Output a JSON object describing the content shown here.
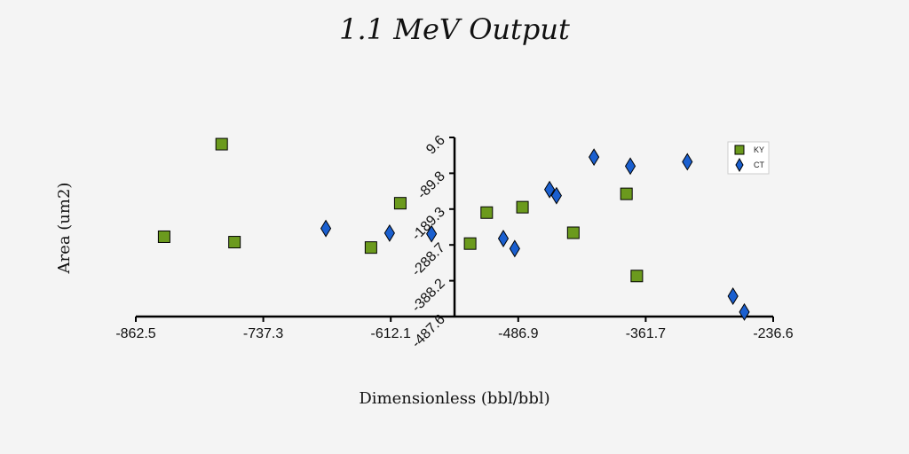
{
  "chart_data": {
    "type": "scatter",
    "title": "1.1 MeV Output",
    "xlabel": "Dimensionless (bbl/bbl)",
    "ylabel": "Area (um2)",
    "xlim": [
      -862.5,
      -236.6
    ],
    "ylim": [
      -487.6,
      9.6
    ],
    "xticks": [
      "-862.5",
      "-737.3",
      "-612.1",
      "-486.9",
      "-361.7",
      "-236.6"
    ],
    "yticks": [
      "-487.6",
      "-388.2",
      "-288.7",
      "-189.3",
      "-89.8",
      "9.6"
    ],
    "y_axis_at_x": -549.5,
    "grid": false,
    "legend_position": "top-right",
    "series": [
      {
        "name": "KY",
        "marker": "square",
        "color": "#6b9a1d",
        "points": [
          {
            "x": -778.2,
            "y": -9.0
          },
          {
            "x": -834.7,
            "y": -266.0
          },
          {
            "x": -765.6,
            "y": -281.0
          },
          {
            "x": -602.8,
            "y": -173.0
          },
          {
            "x": -631.6,
            "y": -296.0
          },
          {
            "x": -534.2,
            "y": -285.0
          },
          {
            "x": -517.9,
            "y": -199.0
          },
          {
            "x": -482.8,
            "y": -184.0
          },
          {
            "x": -432.9,
            "y": -255.0
          },
          {
            "x": -380.7,
            "y": -147.0
          },
          {
            "x": -370.5,
            "y": -375.0
          }
        ]
      },
      {
        "name": "CT",
        "marker": "diamond",
        "color": "#1a5fcf",
        "points": [
          {
            "x": -675.9,
            "y": -243.0
          },
          {
            "x": -613.3,
            "y": -256.0
          },
          {
            "x": -572.1,
            "y": -258.0
          },
          {
            "x": -501.6,
            "y": -271.0
          },
          {
            "x": -490.4,
            "y": -299.0
          },
          {
            "x": -456.2,
            "y": -135.0
          },
          {
            "x": -449.4,
            "y": -152.0
          },
          {
            "x": -412.6,
            "y": -45.0
          },
          {
            "x": -376.9,
            "y": -70.0
          },
          {
            "x": -320.9,
            "y": -58.0
          },
          {
            "x": -276.1,
            "y": -431.0
          },
          {
            "x": -264.9,
            "y": -475.0
          }
        ]
      }
    ]
  }
}
